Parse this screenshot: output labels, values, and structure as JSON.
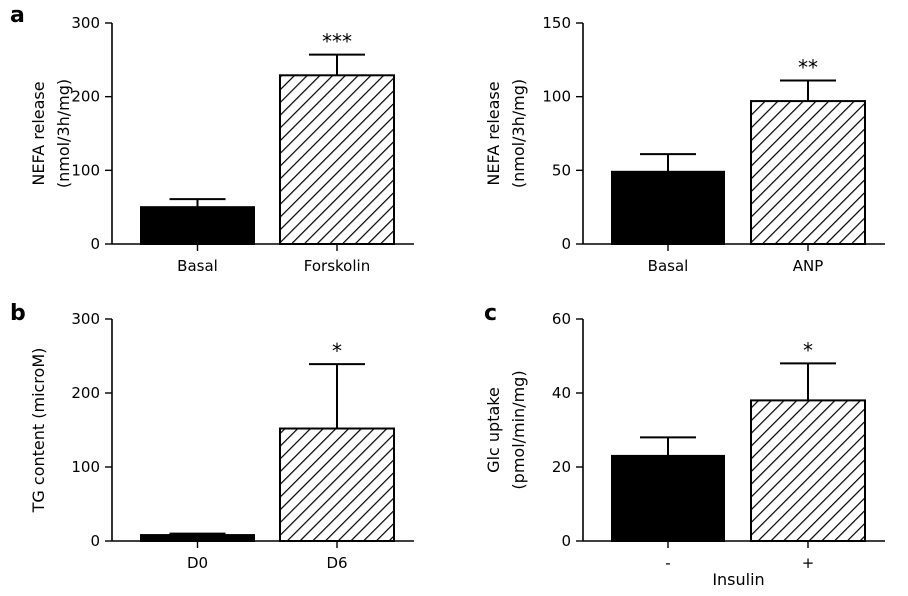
{
  "chart_data": [
    {
      "type": "bar",
      "panel_letter": "a",
      "ylabel": [
        "NEFA release",
        "(nmol/3h/mg)"
      ],
      "xlabel": "",
      "ylim": [
        0,
        300
      ],
      "yticks": [
        "0",
        "100",
        "200",
        "300"
      ],
      "categories": [
        "Basal",
        "Forskolin"
      ],
      "values": [
        50,
        229
      ],
      "errors": [
        11,
        28
      ],
      "fills": [
        "solid",
        "hatched"
      ],
      "significance": [
        "",
        "***"
      ]
    },
    {
      "type": "bar",
      "panel_letter": "",
      "ylabel": [
        "NEFA release",
        "(nmol/3h/mg)"
      ],
      "xlabel": "",
      "ylim": [
        0,
        150
      ],
      "yticks": [
        "0",
        "50",
        "100",
        "150"
      ],
      "categories": [
        "Basal",
        "ANP"
      ],
      "values": [
        49,
        97
      ],
      "errors": [
        12,
        14
      ],
      "fills": [
        "solid",
        "hatched"
      ],
      "significance": [
        "",
        "**"
      ]
    },
    {
      "type": "bar",
      "panel_letter": "b",
      "ylabel": [
        "TG content (microM)"
      ],
      "xlabel": "",
      "ylim": [
        0,
        300
      ],
      "yticks": [
        "0",
        "100",
        "200",
        "300"
      ],
      "categories": [
        "D0",
        "D6"
      ],
      "values": [
        8,
        152
      ],
      "errors": [
        2,
        87
      ],
      "fills": [
        "solid",
        "hatched"
      ],
      "significance": [
        "",
        "*"
      ]
    },
    {
      "type": "bar",
      "panel_letter": "c",
      "ylabel": [
        "Glc uptake",
        "(pmol/min/mg)"
      ],
      "xlabel": "Insulin",
      "ylim": [
        0,
        60
      ],
      "yticks": [
        "0",
        "20",
        "40",
        "60"
      ],
      "categories": [
        "-",
        "+"
      ],
      "values": [
        23,
        38
      ],
      "errors": [
        5,
        10
      ],
      "fills": [
        "solid",
        "hatched"
      ],
      "significance": [
        "",
        "*"
      ]
    }
  ]
}
